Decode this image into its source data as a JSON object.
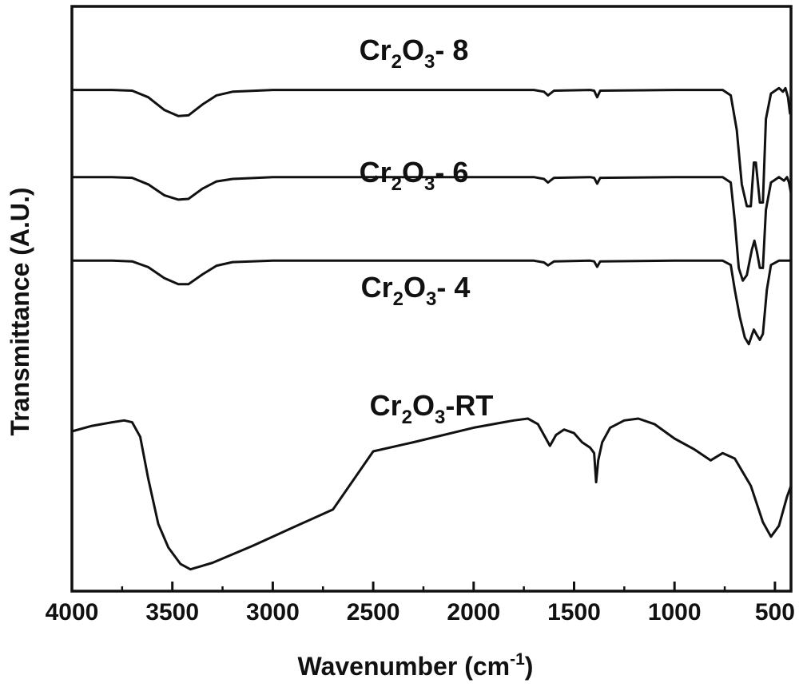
{
  "chart_data": {
    "type": "line",
    "xlabel": {
      "main": "Wavenumber (cm",
      "sup": "-1",
      "close": ")"
    },
    "ylabel": "Transmittance (A.U.)",
    "xlim": [
      4000,
      420
    ],
    "x_reversed": true,
    "y_ticks_shown": false,
    "grid": false,
    "x_ticks": [
      4000,
      3500,
      3000,
      2500,
      2000,
      1500,
      1000,
      500
    ],
    "x_tick_labels": [
      "4000",
      "3500",
      "3000",
      "2500",
      "2000",
      "1500",
      "1000",
      "500"
    ],
    "series": [
      {
        "name": "Cr2O3- 8",
        "label_parts": [
          "Cr",
          "2",
          "O",
          "3",
          "- 8"
        ],
        "baseline": 7.6,
        "points": [
          [
            4000,
            7.6
          ],
          [
            3800,
            7.6
          ],
          [
            3700,
            7.58
          ],
          [
            3620,
            7.4
          ],
          [
            3540,
            7.05
          ],
          [
            3470,
            6.88
          ],
          [
            3420,
            6.9
          ],
          [
            3350,
            7.2
          ],
          [
            3280,
            7.45
          ],
          [
            3200,
            7.55
          ],
          [
            3000,
            7.6
          ],
          [
            2000,
            7.6
          ],
          [
            1700,
            7.6
          ],
          [
            1650,
            7.55
          ],
          [
            1630,
            7.45
          ],
          [
            1600,
            7.58
          ],
          [
            1420,
            7.6
          ],
          [
            1400,
            7.58
          ],
          [
            1385,
            7.4
          ],
          [
            1370,
            7.58
          ],
          [
            1000,
            7.6
          ],
          [
            760,
            7.6
          ],
          [
            720,
            7.45
          ],
          [
            690,
            6.5
          ],
          [
            665,
            5.0
          ],
          [
            640,
            4.4
          ],
          [
            620,
            4.4
          ],
          [
            605,
            5.6
          ],
          [
            595,
            5.6
          ],
          [
            575,
            4.5
          ],
          [
            560,
            4.5
          ],
          [
            545,
            6.8
          ],
          [
            520,
            7.5
          ],
          [
            480,
            7.65
          ],
          [
            460,
            7.55
          ],
          [
            448,
            7.65
          ],
          [
            435,
            7.4
          ],
          [
            425,
            6.95
          ],
          [
            420,
            7.2
          ]
        ]
      },
      {
        "name": "Cr2O3- 6",
        "label_parts": [
          "Cr",
          "2",
          "O",
          "3",
          "- 6"
        ],
        "baseline": 5.2,
        "points": [
          [
            4000,
            5.2
          ],
          [
            3800,
            5.2
          ],
          [
            3700,
            5.18
          ],
          [
            3620,
            5.0
          ],
          [
            3540,
            4.7
          ],
          [
            3470,
            4.58
          ],
          [
            3420,
            4.6
          ],
          [
            3350,
            4.88
          ],
          [
            3280,
            5.08
          ],
          [
            3200,
            5.15
          ],
          [
            3000,
            5.2
          ],
          [
            2000,
            5.2
          ],
          [
            1700,
            5.2
          ],
          [
            1650,
            5.15
          ],
          [
            1630,
            5.05
          ],
          [
            1600,
            5.18
          ],
          [
            1420,
            5.2
          ],
          [
            1400,
            5.18
          ],
          [
            1385,
            5.02
          ],
          [
            1370,
            5.18
          ],
          [
            1000,
            5.2
          ],
          [
            760,
            5.2
          ],
          [
            720,
            5.05
          ],
          [
            700,
            4.0
          ],
          [
            680,
            2.7
          ],
          [
            660,
            2.35
          ],
          [
            640,
            2.5
          ],
          [
            615,
            3.2
          ],
          [
            602,
            3.45
          ],
          [
            590,
            3.15
          ],
          [
            575,
            2.7
          ],
          [
            560,
            2.7
          ],
          [
            545,
            4.3
          ],
          [
            520,
            5.05
          ],
          [
            480,
            5.2
          ],
          [
            455,
            5.1
          ],
          [
            440,
            5.2
          ],
          [
            430,
            5.05
          ],
          [
            420,
            4.75
          ]
        ]
      },
      {
        "name": "Cr2O3- 4",
        "label_parts": [
          "Cr",
          "2",
          "O",
          "3",
          "- 4"
        ],
        "baseline": 2.9,
        "points": [
          [
            4000,
            2.9
          ],
          [
            3800,
            2.9
          ],
          [
            3700,
            2.88
          ],
          [
            3620,
            2.72
          ],
          [
            3540,
            2.42
          ],
          [
            3470,
            2.25
          ],
          [
            3420,
            2.25
          ],
          [
            3350,
            2.52
          ],
          [
            3280,
            2.76
          ],
          [
            3200,
            2.86
          ],
          [
            3000,
            2.9
          ],
          [
            2000,
            2.9
          ],
          [
            1700,
            2.9
          ],
          [
            1650,
            2.85
          ],
          [
            1630,
            2.77
          ],
          [
            1600,
            2.88
          ],
          [
            1420,
            2.9
          ],
          [
            1400,
            2.88
          ],
          [
            1385,
            2.73
          ],
          [
            1370,
            2.88
          ],
          [
            1000,
            2.9
          ],
          [
            760,
            2.9
          ],
          [
            720,
            2.78
          ],
          [
            700,
            2.1
          ],
          [
            675,
            1.35
          ],
          [
            650,
            0.78
          ],
          [
            630,
            0.6
          ],
          [
            615,
            0.85
          ],
          [
            605,
            1.0
          ],
          [
            590,
            0.85
          ],
          [
            575,
            0.72
          ],
          [
            560,
            0.88
          ],
          [
            540,
            2.1
          ],
          [
            520,
            2.78
          ],
          [
            480,
            2.9
          ],
          [
            420,
            2.9
          ]
        ]
      },
      {
        "name": "Cr2O3-RT",
        "label_parts": [
          "Cr",
          "2",
          "O",
          "3",
          "-RT"
        ],
        "baseline": -1.8,
        "points": [
          [
            4000,
            -1.8
          ],
          [
            3900,
            -1.65
          ],
          [
            3800,
            -1.55
          ],
          [
            3740,
            -1.5
          ],
          [
            3700,
            -1.55
          ],
          [
            3660,
            -1.95
          ],
          [
            3620,
            -3.1
          ],
          [
            3570,
            -4.35
          ],
          [
            3520,
            -5.0
          ],
          [
            3460,
            -5.45
          ],
          [
            3410,
            -5.6
          ],
          [
            3300,
            -5.42
          ],
          [
            3100,
            -4.95
          ],
          [
            2900,
            -4.45
          ],
          [
            2700,
            -3.95
          ],
          [
            2500,
            -2.35
          ],
          [
            2300,
            -2.1
          ],
          [
            2000,
            -1.7
          ],
          [
            1800,
            -1.5
          ],
          [
            1730,
            -1.45
          ],
          [
            1680,
            -1.6
          ],
          [
            1650,
            -1.9
          ],
          [
            1620,
            -2.2
          ],
          [
            1590,
            -1.9
          ],
          [
            1550,
            -1.75
          ],
          [
            1500,
            -1.85
          ],
          [
            1460,
            -2.1
          ],
          [
            1420,
            -2.25
          ],
          [
            1400,
            -2.4
          ],
          [
            1390,
            -3.2
          ],
          [
            1380,
            -2.6
          ],
          [
            1360,
            -2.1
          ],
          [
            1320,
            -1.7
          ],
          [
            1250,
            -1.5
          ],
          [
            1180,
            -1.45
          ],
          [
            1100,
            -1.6
          ],
          [
            1000,
            -2.0
          ],
          [
            900,
            -2.3
          ],
          [
            820,
            -2.6
          ],
          [
            760,
            -2.4
          ],
          [
            700,
            -2.55
          ],
          [
            620,
            -3.3
          ],
          [
            560,
            -4.3
          ],
          [
            520,
            -4.7
          ],
          [
            480,
            -4.4
          ],
          [
            440,
            -3.6
          ],
          [
            420,
            -3.3
          ]
        ]
      }
    ]
  }
}
